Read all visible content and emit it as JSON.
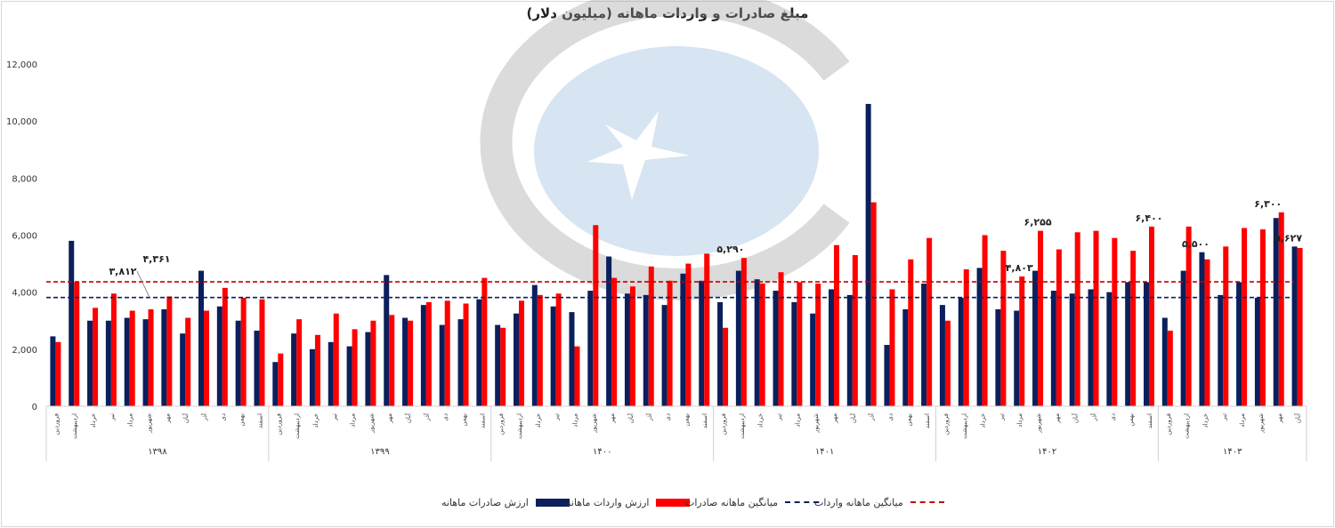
{
  "chart_data": {
    "type": "bar",
    "title": "مبلغ صادرات و واردات ماهانه (میلیون دلار)",
    "ylim": [
      0,
      12000
    ],
    "yticks": [
      "0",
      "2,000",
      "4,000",
      "6,000",
      "8,000",
      "10,000",
      "12,000"
    ],
    "months": [
      "فروردین",
      "اردیبهشت",
      "خرداد",
      "تیر",
      "مرداد",
      "شهریور",
      "مهر",
      "آبان",
      "آذر",
      "دی",
      "بهمن",
      "اسفند"
    ],
    "years": [
      {
        "label": "۱۳۹۸",
        "count": 12
      },
      {
        "label": "۱۳۹۹",
        "count": 12
      },
      {
        "label": "۱۴۰۰",
        "count": 12
      },
      {
        "label": "۱۴۰۱",
        "count": 12
      },
      {
        "label": "۱۴۰۲",
        "count": 12
      },
      {
        "label": "۱۴۰۳",
        "count": 8
      }
    ],
    "series": [
      {
        "name": "ارزش صادرات ماهانه",
        "color": "#0b1f5c",
        "values": [
          2450,
          5800,
          3000,
          3000,
          3100,
          3050,
          3400,
          2550,
          4750,
          3500,
          3000,
          2650,
          1550,
          2550,
          2000,
          2250,
          2100,
          2600,
          4600,
          3100,
          3550,
          2850,
          3050,
          3750,
          2850,
          3250,
          4250,
          3500,
          3300,
          4050,
          5250,
          3950,
          3900,
          3550,
          4650,
          4400,
          3650,
          4750,
          4450,
          4050,
          3650,
          3250,
          4100,
          3900,
          10600,
          2150,
          3400,
          4300,
          3550,
          3800,
          4850,
          3400,
          3350,
          4750,
          4050,
          3950,
          4100,
          4000,
          4350,
          4350,
          3100,
          4750,
          5400,
          3900,
          4350,
          3800,
          6600,
          5600
        ]
      },
      {
        "name": "ارزش واردات ماهانه",
        "color": "#ff0000",
        "values": [
          2250,
          4350,
          3450,
          3950,
          3350,
          3400,
          3850,
          3100,
          3350,
          4150,
          3800,
          3750,
          1850,
          3050,
          2500,
          3250,
          2700,
          3000,
          3200,
          3000,
          3650,
          3700,
          3600,
          4500,
          2750,
          3700,
          3900,
          3950,
          2100,
          6350,
          4500,
          4200,
          4900,
          4400,
          5000,
          5350,
          2750,
          5200,
          4300,
          4700,
          4350,
          4300,
          5650,
          5300,
          7150,
          4100,
          5150,
          5900,
          3000,
          4800,
          6000,
          5450,
          4550,
          6150,
          5500,
          6100,
          6150,
          5900,
          5450,
          6300,
          2650,
          6300,
          5150,
          5600,
          6250,
          6200,
          6800,
          5550
        ]
      },
      {
        "name": "میانگین ماهانه صادرات",
        "color": "#0b1f5c",
        "value": 3812,
        "style": "dashed"
      },
      {
        "name": "میانگین ماهانه واردات",
        "color": "#c00000",
        "value": 4361,
        "style": "dashed"
      }
    ],
    "annotations": [
      {
        "text": "۳,۸۱۲",
        "y": 3812
      },
      {
        "text": "۴,۳۶۱",
        "y": 4361
      },
      {
        "text": "۵,۲۹۰",
        "index": 37
      },
      {
        "text": "۴,۸۰۳",
        "index": 52
      },
      {
        "text": "۶,۲۵۵",
        "index": 53
      },
      {
        "text": "۶,۴۰۰",
        "index": 59
      },
      {
        "text": "۵,۵۰۰",
        "index": 62
      },
      {
        "text": "۶,۳۰۰",
        "index": 66
      },
      {
        "text": "۵,۶۲۷",
        "index": 67
      }
    ],
    "legend_position": "bottom",
    "grid": false
  }
}
